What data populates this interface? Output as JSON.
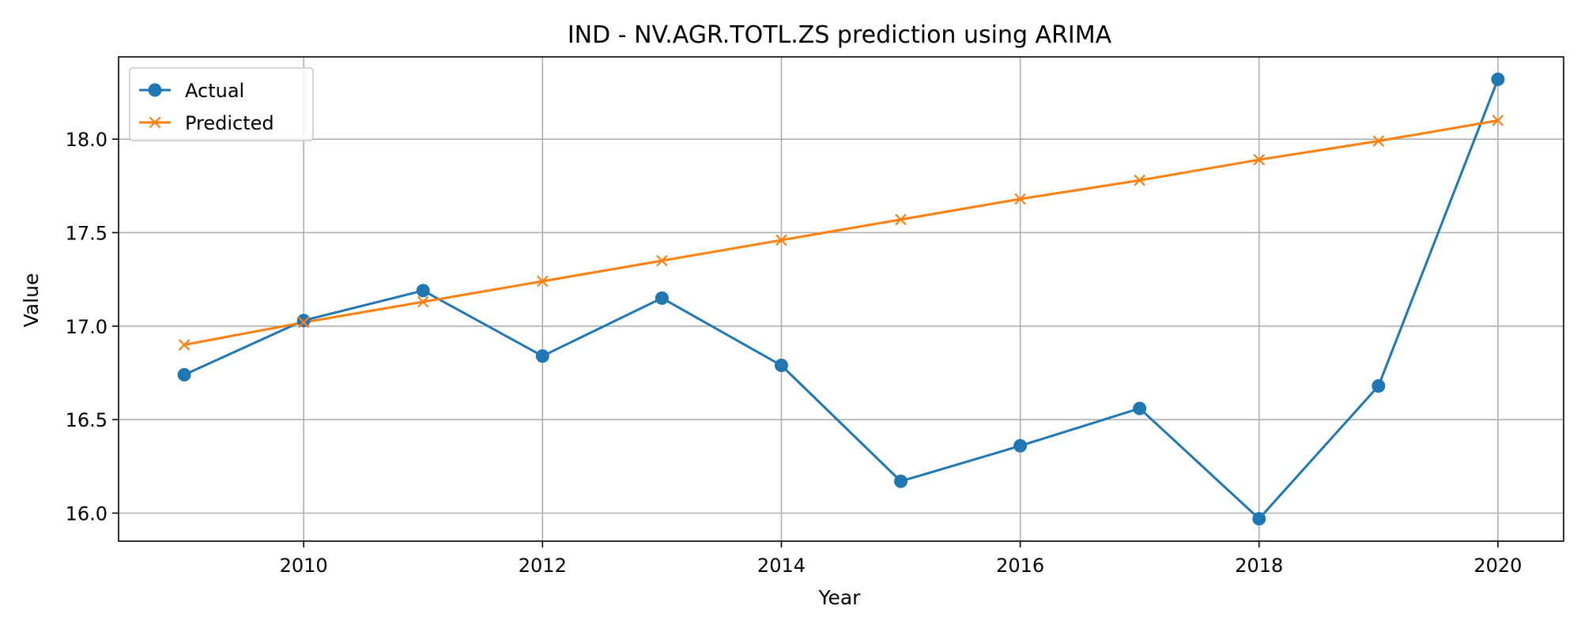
{
  "chart_data": {
    "type": "line",
    "title": "IND - NV.AGR.TOTL.ZS prediction using ARIMA",
    "xlabel": "Year",
    "ylabel": "Value",
    "x": [
      2009,
      2010,
      2011,
      2012,
      2013,
      2014,
      2015,
      2016,
      2017,
      2018,
      2019,
      2020
    ],
    "xlim": [
      2008.45,
      2020.55
    ],
    "ylim": [
      15.85,
      18.44
    ],
    "xticks": [
      2010,
      2012,
      2014,
      2016,
      2018,
      2020
    ],
    "yticks": [
      16.0,
      16.5,
      17.0,
      17.5,
      18.0
    ],
    "xtick_labels": [
      "2010",
      "2012",
      "2014",
      "2016",
      "2018",
      "2020"
    ],
    "ytick_labels": [
      "16.0",
      "16.5",
      "17.0",
      "17.5",
      "18.0"
    ],
    "grid": true,
    "legend_position": "top-left",
    "series": [
      {
        "name": "Actual",
        "marker": "circle",
        "color": "#1f77b4",
        "values": [
          16.74,
          17.03,
          17.19,
          16.84,
          17.15,
          16.79,
          16.17,
          16.36,
          16.56,
          15.97,
          16.68,
          18.32
        ]
      },
      {
        "name": "Predicted",
        "marker": "x",
        "color": "#ff7f0e",
        "values": [
          16.9,
          17.02,
          17.13,
          17.24,
          17.35,
          17.46,
          17.57,
          17.68,
          17.78,
          17.89,
          17.99,
          18.1
        ]
      }
    ]
  }
}
